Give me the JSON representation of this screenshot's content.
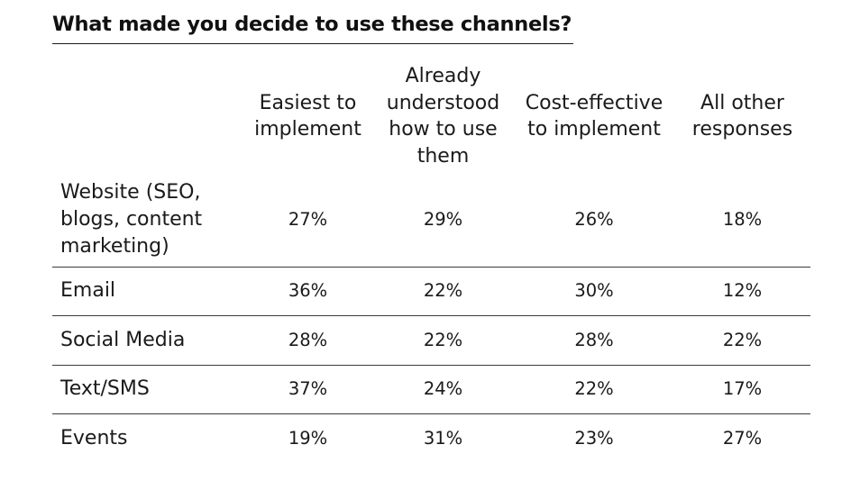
{
  "chart_data": {
    "type": "table",
    "title": "What made you decide to use these channels?",
    "columns": [
      "Easiest to implement",
      "Already understood how to use them",
      "Cost-effective to implement",
      "All other responses"
    ],
    "rows": [
      {
        "label": "Website (SEO, blogs, content marketing)",
        "values": [
          "27%",
          "29%",
          "26%",
          "18%"
        ]
      },
      {
        "label": "Email",
        "values": [
          "36%",
          "22%",
          "30%",
          "12%"
        ]
      },
      {
        "label": "Social Media",
        "values": [
          "28%",
          "22%",
          "28%",
          "22%"
        ]
      },
      {
        "label": "Text/SMS",
        "values": [
          "37%",
          "24%",
          "22%",
          "17%"
        ]
      },
      {
        "label": "Events",
        "values": [
          "19%",
          "31%",
          "23%",
          "27%"
        ]
      }
    ]
  }
}
